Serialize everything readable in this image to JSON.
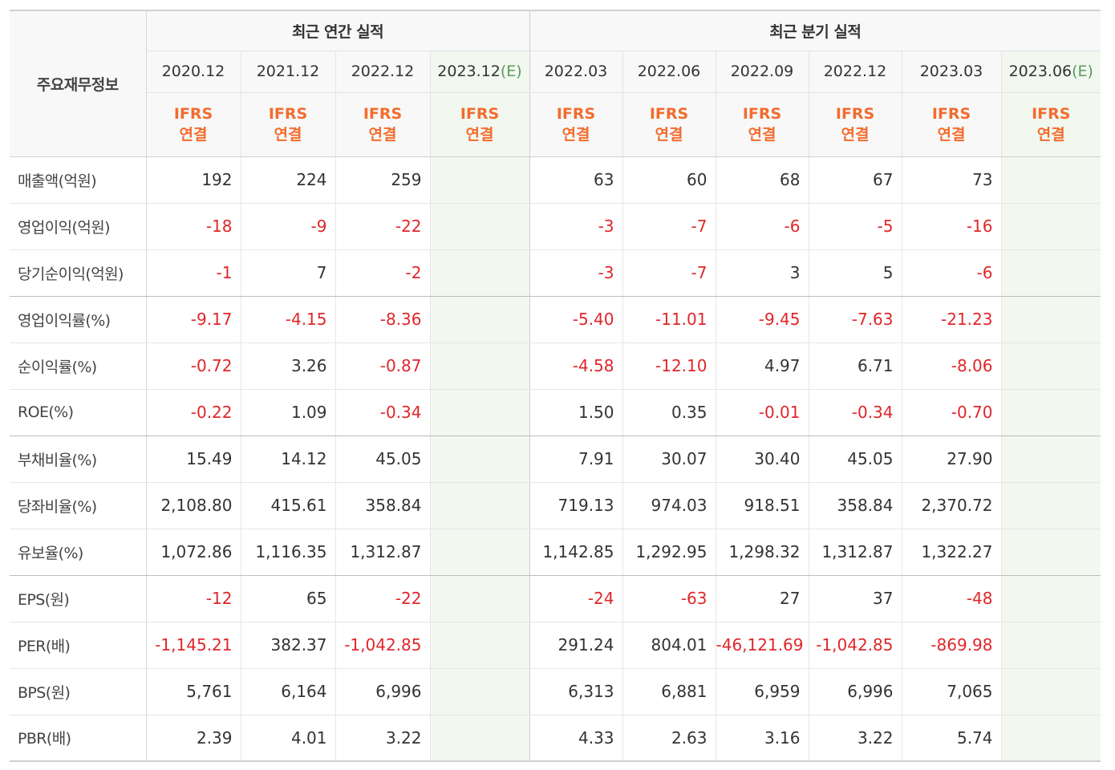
{
  "header": {
    "corner_label": "주요재무정보",
    "group_annual": "최근 연간 실적",
    "group_quarter": "최근 분기 실적",
    "est_mark": "(E)",
    "ifrs_line1": "IFRS",
    "ifrs_line2": "연결",
    "annual_periods": [
      "2020.12",
      "2021.12",
      "2022.12",
      "2023.12"
    ],
    "quarter_periods": [
      "2022.03",
      "2022.06",
      "2022.09",
      "2022.12",
      "2023.03",
      "2023.06"
    ]
  },
  "rows": [
    {
      "label": "매출액(억원)",
      "annual": [
        "192",
        "224",
        "259",
        ""
      ],
      "quarter": [
        "63",
        "60",
        "68",
        "67",
        "73",
        ""
      ]
    },
    {
      "label": "영업이익(억원)",
      "annual": [
        "-18",
        "-9",
        "-22",
        ""
      ],
      "quarter": [
        "-3",
        "-7",
        "-6",
        "-5",
        "-16",
        ""
      ]
    },
    {
      "label": "당기순이익(억원)",
      "annual": [
        "-1",
        "7",
        "-2",
        ""
      ],
      "quarter": [
        "-3",
        "-7",
        "3",
        "5",
        "-6",
        ""
      ]
    },
    {
      "label": "영업이익률(%)",
      "annual": [
        "-9.17",
        "-4.15",
        "-8.36",
        ""
      ],
      "quarter": [
        "-5.40",
        "-11.01",
        "-9.45",
        "-7.63",
        "-21.23",
        ""
      ]
    },
    {
      "label": "순이익률(%)",
      "annual": [
        "-0.72",
        "3.26",
        "-0.87",
        ""
      ],
      "quarter": [
        "-4.58",
        "-12.10",
        "4.97",
        "6.71",
        "-8.06",
        ""
      ]
    },
    {
      "label": "ROE(%)",
      "annual": [
        "-0.22",
        "1.09",
        "-0.34",
        ""
      ],
      "quarter": [
        "1.50",
        "0.35",
        "-0.01",
        "-0.34",
        "-0.70",
        ""
      ]
    },
    {
      "label": "부채비율(%)",
      "annual": [
        "15.49",
        "14.12",
        "45.05",
        ""
      ],
      "quarter": [
        "7.91",
        "30.07",
        "30.40",
        "45.05",
        "27.90",
        ""
      ]
    },
    {
      "label": "당좌비율(%)",
      "annual": [
        "2,108.80",
        "415.61",
        "358.84",
        ""
      ],
      "quarter": [
        "719.13",
        "974.03",
        "918.51",
        "358.84",
        "2,370.72",
        ""
      ]
    },
    {
      "label": "유보율(%)",
      "annual": [
        "1,072.86",
        "1,116.35",
        "1,312.87",
        ""
      ],
      "quarter": [
        "1,142.85",
        "1,292.95",
        "1,298.32",
        "1,312.87",
        "1,322.27",
        ""
      ]
    },
    {
      "label": "EPS(원)",
      "annual": [
        "-12",
        "65",
        "-22",
        ""
      ],
      "quarter": [
        "-24",
        "-63",
        "27",
        "37",
        "-48",
        ""
      ]
    },
    {
      "label": "PER(배)",
      "annual": [
        "-1,145.21",
        "382.37",
        "-1,042.85",
        ""
      ],
      "quarter": [
        "291.24",
        "804.01",
        "-46,121.69",
        "-1,042.85",
        "-869.98",
        ""
      ]
    },
    {
      "label": "BPS(원)",
      "annual": [
        "5,761",
        "6,164",
        "6,996",
        ""
      ],
      "quarter": [
        "6,313",
        "6,881",
        "6,959",
        "6,996",
        "7,065",
        ""
      ]
    },
    {
      "label": "PBR(배)",
      "annual": [
        "2.39",
        "4.01",
        "3.22",
        ""
      ],
      "quarter": [
        "4.33",
        "2.63",
        "3.16",
        "3.22",
        "5.74",
        ""
      ]
    }
  ],
  "colors": {
    "negative": "#e0262a",
    "ifrs": "#f26c2e",
    "estimate_bg": "#f2f8f0",
    "estimate_mark": "#5a9a5a"
  }
}
